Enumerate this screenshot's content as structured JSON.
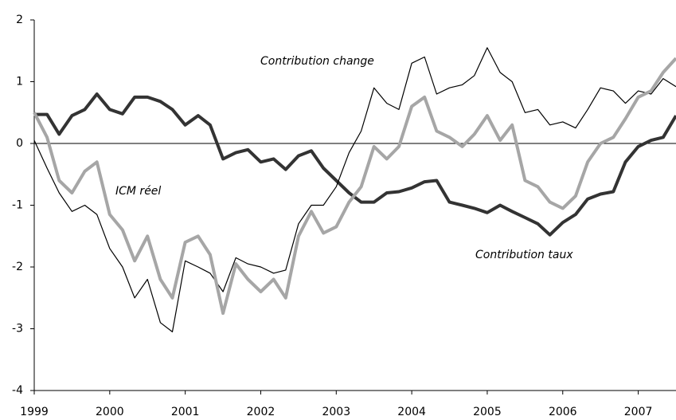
{
  "chart_data": {
    "type": "line",
    "x": [
      1999,
      1999.17,
      1999.33,
      1999.5,
      1999.67,
      1999.83,
      2000,
      2000.17,
      2000.33,
      2000.5,
      2000.67,
      2000.83,
      2001,
      2001.17,
      2001.33,
      2001.5,
      2001.67,
      2001.83,
      2002,
      2002.17,
      2002.33,
      2002.5,
      2002.67,
      2002.83,
      2003,
      2003.17,
      2003.33,
      2003.5,
      2003.67,
      2003.83,
      2004,
      2004.17,
      2004.33,
      2004.5,
      2004.67,
      2004.83,
      2005,
      2005.17,
      2005.33,
      2005.5,
      2005.67,
      2005.83,
      2006,
      2006.17,
      2006.33,
      2006.5,
      2006.67,
      2006.83,
      2007,
      2007.17,
      2007.33,
      2007.5
    ],
    "series": [
      {
        "name": "Contribution taux",
        "color": "#333333",
        "values": [
          0.47,
          0.47,
          0.15,
          0.45,
          0.55,
          0.8,
          0.55,
          0.48,
          0.75,
          0.75,
          0.68,
          0.55,
          0.3,
          0.45,
          0.3,
          -0.25,
          -0.15,
          -0.1,
          -0.3,
          -0.25,
          -0.42,
          -0.2,
          -0.12,
          -0.4,
          -0.6,
          -0.8,
          -0.95,
          -0.95,
          -0.8,
          -0.78,
          -0.72,
          -0.62,
          -0.6,
          -0.95,
          -1.0,
          -1.05,
          -1.12,
          -1.0,
          -1.1,
          -1.2,
          -1.3,
          -1.48,
          -1.28,
          -1.15,
          -0.9,
          -0.82,
          -0.78,
          -0.3,
          -0.05,
          0.05,
          0.1,
          0.45
        ]
      },
      {
        "name": "Contribution change",
        "color": "#000000",
        "values": [
          0.05,
          -0.4,
          -0.8,
          -1.1,
          -1.0,
          -1.15,
          -1.7,
          -2.0,
          -2.5,
          -2.2,
          -2.9,
          -3.05,
          -1.9,
          -2.0,
          -2.1,
          -2.4,
          -1.85,
          -1.95,
          -2.0,
          -2.1,
          -2.05,
          -1.3,
          -1.0,
          -1.0,
          -0.7,
          -0.15,
          0.2,
          0.9,
          0.65,
          0.55,
          1.3,
          1.4,
          0.8,
          0.9,
          0.95,
          1.1,
          1.55,
          1.15,
          1.0,
          0.5,
          0.55,
          0.3,
          0.35,
          0.25,
          0.55,
          0.9,
          0.85,
          0.65,
          0.85,
          0.8,
          1.05,
          0.92
        ]
      },
      {
        "name": "ICM réel",
        "color": "#a6a6a6",
        "values": [
          0.5,
          0.1,
          -0.6,
          -0.8,
          -0.45,
          -0.3,
          -1.15,
          -1.4,
          -1.9,
          -1.5,
          -2.2,
          -2.5,
          -1.6,
          -1.5,
          -1.8,
          -2.75,
          -1.95,
          -2.2,
          -2.4,
          -2.2,
          -2.5,
          -1.5,
          -1.1,
          -1.45,
          -1.35,
          -0.95,
          -0.7,
          -0.05,
          -0.25,
          -0.05,
          0.6,
          0.75,
          0.2,
          0.1,
          -0.05,
          0.15,
          0.45,
          0.05,
          0.3,
          -0.6,
          -0.7,
          -0.95,
          -1.05,
          -0.85,
          -0.3,
          0.0,
          0.1,
          0.4,
          0.75,
          0.85,
          1.15,
          1.38
        ]
      }
    ],
    "xlim": [
      1999,
      2007.5
    ],
    "xticks": [
      1999,
      2000,
      2001,
      2002,
      2003,
      2004,
      2005,
      2006,
      2007
    ],
    "ylim": [
      -4,
      2
    ],
    "yticks": [
      -4,
      -3,
      -2,
      -1,
      0,
      1,
      2
    ]
  }
}
